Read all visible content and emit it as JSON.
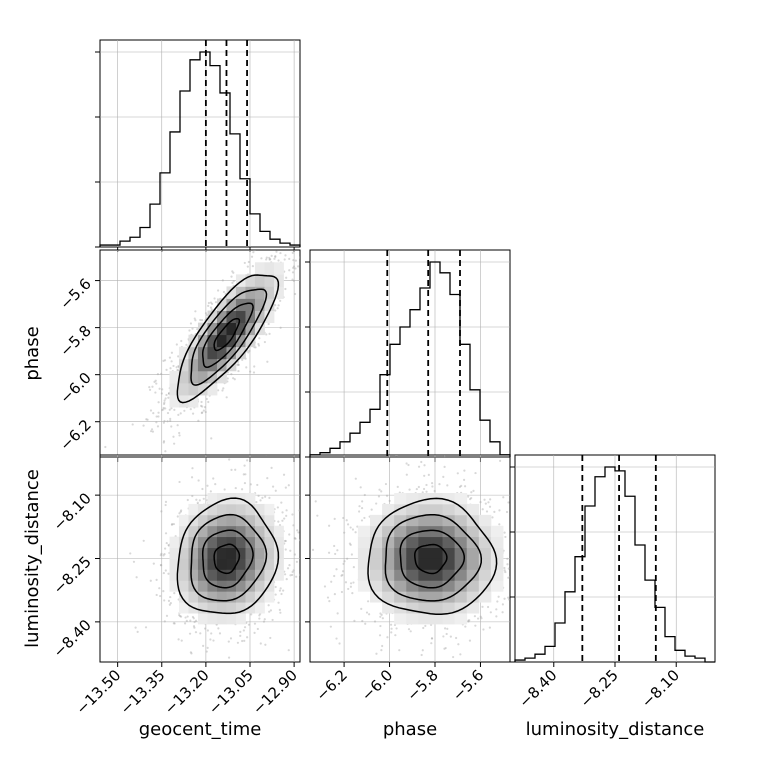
{
  "chart_data": {
    "type": "corner",
    "parameters": [
      {
        "key": "geocent_time",
        "label": "geocent_time"
      },
      {
        "key": "phase",
        "label": "phase"
      },
      {
        "key": "luminosity_distance",
        "label": "luminosity_distance"
      }
    ],
    "ranges": {
      "geocent_time": [
        -13.56,
        -12.88
      ],
      "phase": [
        -6.35,
        -5.47
      ],
      "luminosity_distance": [
        -8.495,
        -8.005
      ]
    },
    "ticks": {
      "geocent_time": {
        "values": [
          -13.5,
          -13.35,
          -13.2,
          -13.05,
          -12.9
        ],
        "labels": [
          "−13.50",
          "−13.35",
          "−13.20",
          "−13.05",
          "−12.90"
        ]
      },
      "phase": {
        "values": [
          -6.2,
          -6.0,
          -5.8,
          -5.6
        ],
        "labels": [
          "−6.2",
          "−6.0",
          "−5.8",
          "−5.6"
        ]
      },
      "luminosity_distance": {
        "values": [
          -8.4,
          -8.25,
          -8.1
        ],
        "labels": [
          "−8.40",
          "−8.25",
          "−8.10"
        ]
      }
    },
    "histograms": {
      "geocent_time": {
        "bin_edges": [
          -13.56,
          -13.526,
          -13.492,
          -13.458,
          -13.424,
          -13.39,
          -13.356,
          -13.322,
          -13.288,
          -13.254,
          -13.22,
          -13.186,
          -13.152,
          -13.118,
          -13.084,
          -13.05,
          -13.016,
          -12.982,
          -12.948,
          -12.914,
          -12.88
        ],
        "counts": [
          1,
          1,
          3,
          5,
          10,
          22,
          38,
          59,
          80,
          96,
          100,
          93,
          79,
          58,
          35,
          17,
          8,
          4,
          2,
          1
        ],
        "quantiles": [
          -13.2,
          -13.13,
          -13.06
        ]
      },
      "phase": {
        "bin_edges": [
          -6.35,
          -6.306,
          -6.262,
          -6.218,
          -6.174,
          -6.13,
          -6.086,
          -6.042,
          -5.998,
          -5.954,
          -5.91,
          -5.866,
          -5.822,
          -5.778,
          -5.734,
          -5.69,
          -5.646,
          -5.602,
          -5.558,
          -5.514,
          -5.47
        ],
        "counts": [
          1,
          2,
          4,
          7,
          11,
          16,
          22,
          38,
          52,
          60,
          68,
          78,
          90,
          85,
          75,
          52,
          31,
          17,
          7,
          1
        ],
        "quantiles": [
          -6.01,
          -5.83,
          -5.69
        ]
      },
      "luminosity_distance": {
        "bin_edges": [
          -8.495,
          -8.4705,
          -8.446,
          -8.4215,
          -8.397,
          -8.3725,
          -8.348,
          -8.3235,
          -8.299,
          -8.2745,
          -8.25,
          -8.2255,
          -8.201,
          -8.1765,
          -8.152,
          -8.1275,
          -8.103,
          -8.0785,
          -8.054,
          -8.0295,
          -8.005
        ],
        "counts": [
          1,
          2,
          4,
          8,
          20,
          36,
          54,
          80,
          95,
          100,
          98,
          85,
          60,
          42,
          28,
          13,
          6,
          3,
          2,
          0
        ],
        "quantiles": [
          -8.33,
          -8.24,
          -8.15
        ]
      }
    },
    "pairs": [
      {
        "x": "geocent_time",
        "y": "phase",
        "mean": [
          -13.13,
          -5.83
        ],
        "std": [
          0.085,
          0.135
        ],
        "correlation": 0.8
      },
      {
        "x": "geocent_time",
        "y": "luminosity_distance",
        "mean": [
          -13.13,
          -8.25
        ],
        "std": [
          0.085,
          0.068
        ],
        "correlation": 0.1
      },
      {
        "x": "phase",
        "y": "luminosity_distance",
        "mean": [
          -5.82,
          -8.25
        ],
        "std": [
          0.14,
          0.068
        ],
        "correlation": 0.0
      }
    ],
    "contour_sigmas": [
      0.5,
      1.0,
      1.5,
      2.0
    ],
    "grid": true,
    "colors": {
      "line": "#000000",
      "grid": "#b0b0b0",
      "points": "#a9a9a9"
    }
  }
}
